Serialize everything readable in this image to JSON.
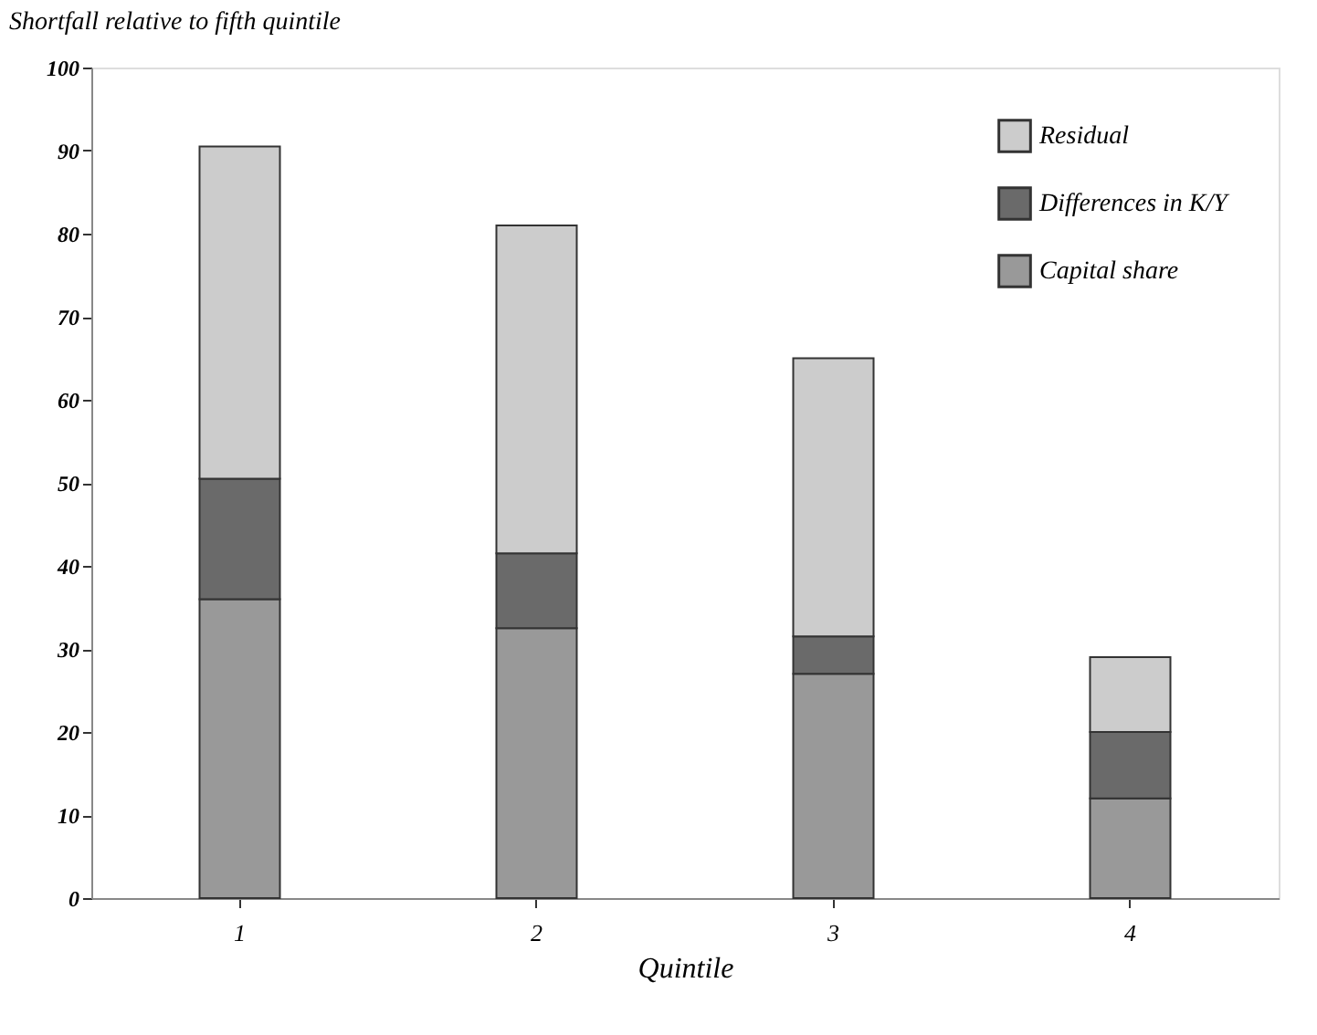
{
  "chart_data": {
    "type": "bar",
    "stacked": true,
    "title": "Shortfall relative to fifth quintile",
    "xlabel": "Quintile",
    "categories": [
      "1",
      "2",
      "3",
      "4"
    ],
    "series": [
      {
        "name": "Capital share",
        "color": "#999999",
        "values": [
          36,
          32.5,
          27,
          12
        ]
      },
      {
        "name": "Differences in K/Y",
        "color": "#6a6a6a",
        "values": [
          14.5,
          9,
          4.5,
          8
        ]
      },
      {
        "name": "Residual",
        "color": "#cccccc",
        "values": [
          40,
          39.5,
          33.5,
          9
        ]
      }
    ],
    "ylim": [
      0,
      100
    ],
    "yticks": [
      0,
      10,
      20,
      30,
      40,
      50,
      60,
      70,
      80,
      90,
      100
    ],
    "grid": false,
    "legend": "top right"
  }
}
